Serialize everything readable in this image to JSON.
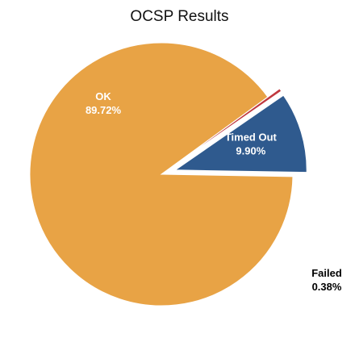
{
  "chart_data": {
    "type": "pie",
    "title": "OCSP Results",
    "slices": [
      {
        "label": "OK",
        "value": 89.72,
        "display": "89.72%",
        "color": "#E8A345",
        "exploded": false,
        "label_color": "#ffffff",
        "label_position": "inside"
      },
      {
        "label": "Timed Out",
        "value": 9.9,
        "display": "9.90%",
        "color": "#2F5A8E",
        "exploded": true,
        "label_color": "#ffffff",
        "label_position": "inside"
      },
      {
        "label": "Failed",
        "value": 0.38,
        "display": "0.38%",
        "color": "#C0383E",
        "exploded": true,
        "label_color": "#000000",
        "label_position": "outside"
      }
    ],
    "legend": "none"
  }
}
